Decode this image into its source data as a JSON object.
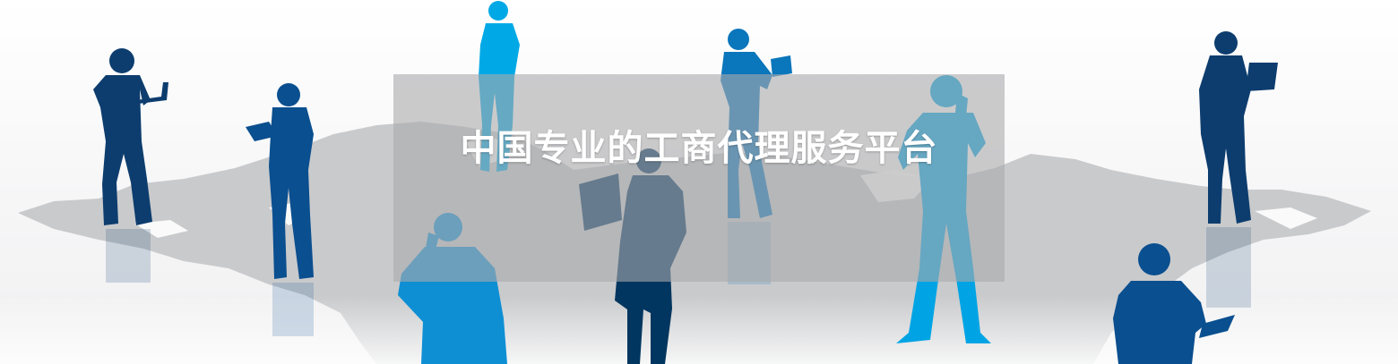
{
  "banner": {
    "title": "中国专业的工商代理服务平台"
  },
  "colors": {
    "navy": "#00365f",
    "dark_blue": "#0a4f8f",
    "mid_blue": "#0a76bb",
    "light_blue": "#00a9e6",
    "map_gray": "#c9cacc"
  },
  "icons": [
    "world-map",
    "person-silhouette",
    "laptop-icon",
    "tablet-icon",
    "phone-icon"
  ]
}
